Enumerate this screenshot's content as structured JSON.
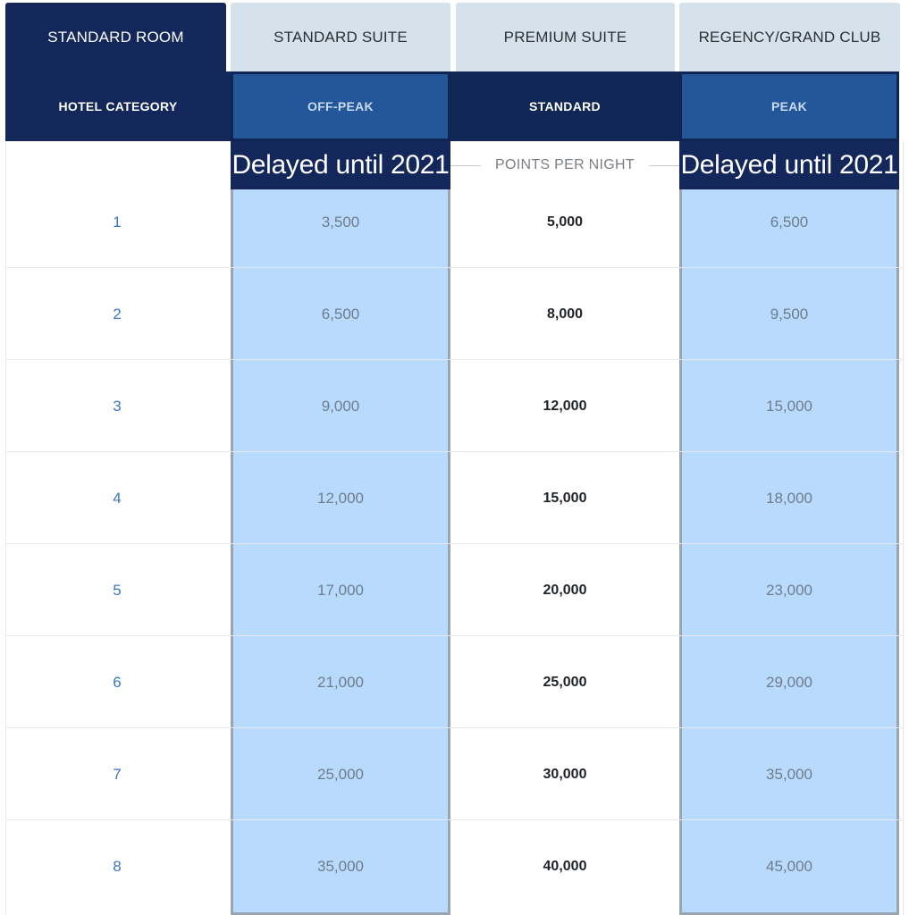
{
  "tabs": [
    {
      "label": "STANDARD ROOM",
      "active": true
    },
    {
      "label": "STANDARD SUITE",
      "active": false
    },
    {
      "label": "PREMIUM SUITE",
      "active": false
    },
    {
      "label": "REGENCY/GRAND CLUB",
      "active": false
    }
  ],
  "header": {
    "category": "HOTEL CATEGORY",
    "off_peak": "OFF-PEAK",
    "standard": "STANDARD",
    "peak": "PEAK"
  },
  "subheader": {
    "off_peak_note": "Delayed until 2021",
    "points_per_night": "POINTS PER NIGHT",
    "peak_note": "Delayed until 2021"
  },
  "rows": [
    {
      "category": "1",
      "off_peak": "3,500",
      "standard": "5,000",
      "peak": "6,500"
    },
    {
      "category": "2",
      "off_peak": "6,500",
      "standard": "8,000",
      "peak": "9,500"
    },
    {
      "category": "3",
      "off_peak": "9,000",
      "standard": "12,000",
      "peak": "15,000"
    },
    {
      "category": "4",
      "off_peak": "12,000",
      "standard": "15,000",
      "peak": "18,000"
    },
    {
      "category": "5",
      "off_peak": "17,000",
      "standard": "20,000",
      "peak": "23,000"
    },
    {
      "category": "6",
      "off_peak": "21,000",
      "standard": "25,000",
      "peak": "29,000"
    },
    {
      "category": "7",
      "off_peak": "25,000",
      "standard": "30,000",
      "peak": "35,000"
    },
    {
      "category": "8",
      "off_peak": "35,000",
      "standard": "40,000",
      "peak": "45,000"
    }
  ],
  "colors": {
    "navy": "#13275b",
    "tab_inactive": "#d5e2ec",
    "highlight_column": "#b8dafd",
    "header_blue": "#24579a",
    "category_link": "#3b74c2"
  }
}
